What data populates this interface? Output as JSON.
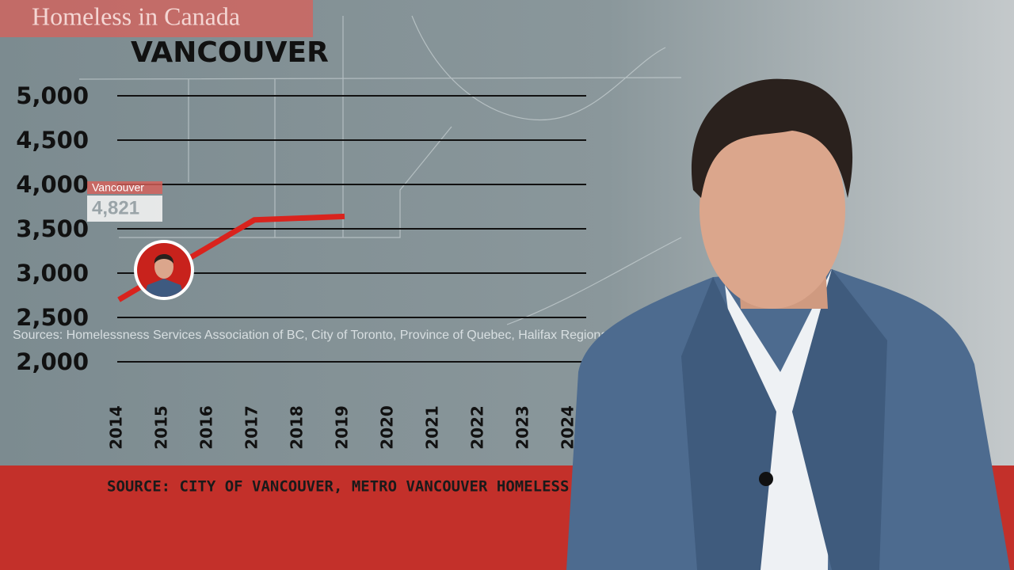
{
  "header": "Homeless in Canada",
  "chart_data": {
    "type": "line",
    "title": "VANCOUVER",
    "categories": [
      "2014",
      "2015",
      "2016",
      "2017",
      "2018",
      "2019",
      "2020",
      "2021",
      "2022",
      "2023",
      "2024"
    ],
    "series": [
      {
        "name": "Vancouver",
        "color": "#d9231d",
        "values": [
          2700,
          3000,
          3300,
          3600,
          3620,
          3640,
          null,
          null,
          null,
          null,
          null
        ]
      }
    ],
    "callout_label": "4,821",
    "ylim": [
      2000,
      5000
    ],
    "yticks": [
      {
        "value": 2000,
        "label": "2,000"
      },
      {
        "value": 2500,
        "label": "2,500"
      },
      {
        "value": 3000,
        "label": "3,000"
      },
      {
        "value": 3500,
        "label": "3,500"
      },
      {
        "value": 4000,
        "label": "4,000"
      },
      {
        "value": 4500,
        "label": "4,500"
      },
      {
        "value": 5000,
        "label": "5,000"
      }
    ],
    "grid": true
  },
  "sources_note": "Sources: Homelessness Services Association of BC, City of Toronto, Province of Quebec, Halifax Regional Municipality",
  "footer_source": "SOURCE: CITY OF VANCOUVER, METRO VANCOUVER HOMELESS COUNT"
}
